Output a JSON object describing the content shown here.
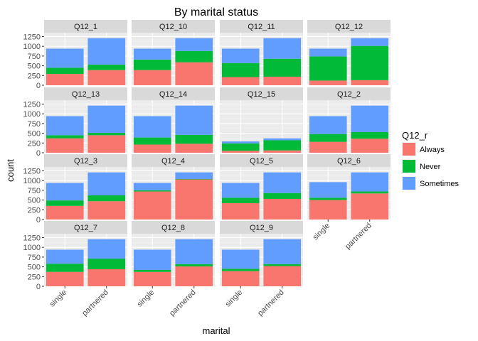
{
  "chart_data": {
    "type": "bar",
    "stacked": true,
    "title": "By marital status",
    "xlabel": "marital",
    "ylabel": "count",
    "ylim": [
      0,
      1350
    ],
    "y_ticks": [
      0,
      250,
      500,
      750,
      1000,
      1250
    ],
    "categories": [
      "single",
      "partnered"
    ],
    "legend": {
      "title": "Q12_r",
      "position": "right",
      "entries": [
        {
          "name": "Always",
          "color": "#F8766D"
        },
        {
          "name": "Never",
          "color": "#00BA38"
        },
        {
          "name": "Sometimes",
          "color": "#619CFF"
        }
      ]
    },
    "panels": [
      {
        "label": "Q12_1",
        "single": {
          "Always": 290,
          "Never": 160,
          "Sometimes": 490
        },
        "partnered": {
          "Always": 390,
          "Never": 140,
          "Sometimes": 680
        }
      },
      {
        "label": "Q12_10",
        "single": {
          "Always": 390,
          "Never": 270,
          "Sometimes": 280
        },
        "partnered": {
          "Always": 590,
          "Never": 290,
          "Sometimes": 330
        }
      },
      {
        "label": "Q12_11",
        "single": {
          "Always": 210,
          "Never": 360,
          "Sometimes": 370
        },
        "partnered": {
          "Always": 220,
          "Never": 460,
          "Sometimes": 530
        }
      },
      {
        "label": "Q12_12",
        "single": {
          "Always": 120,
          "Never": 620,
          "Sometimes": 200
        },
        "partnered": {
          "Always": 130,
          "Never": 880,
          "Sometimes": 200
        }
      },
      {
        "label": "Q12_13",
        "single": {
          "Always": 370,
          "Never": 80,
          "Sometimes": 490
        },
        "partnered": {
          "Always": 450,
          "Never": 60,
          "Sometimes": 700
        }
      },
      {
        "label": "Q12_14",
        "single": {
          "Always": 210,
          "Never": 180,
          "Sometimes": 550
        },
        "partnered": {
          "Always": 230,
          "Never": 230,
          "Sometimes": 750
        }
      },
      {
        "label": "Q12_15",
        "single": {
          "Always": 50,
          "Never": 190,
          "Sometimes": 50
        },
        "partnered": {
          "Always": 60,
          "Never": 260,
          "Sometimes": 50
        }
      },
      {
        "label": "Q12_2",
        "single": {
          "Always": 280,
          "Never": 200,
          "Sometimes": 460
        },
        "partnered": {
          "Always": 360,
          "Never": 170,
          "Sometimes": 680
        }
      },
      {
        "label": "Q12_3",
        "single": {
          "Always": 350,
          "Never": 140,
          "Sometimes": 450
        },
        "partnered": {
          "Always": 470,
          "Never": 150,
          "Sometimes": 590
        }
      },
      {
        "label": "Q12_4",
        "single": {
          "Always": 720,
          "Never": 30,
          "Sometimes": 190
        },
        "partnered": {
          "Always": 1030,
          "Never": 10,
          "Sometimes": 170
        }
      },
      {
        "label": "Q12_5",
        "single": {
          "Always": 420,
          "Never": 140,
          "Sometimes": 380
        },
        "partnered": {
          "Always": 530,
          "Never": 150,
          "Sometimes": 530
        }
      },
      {
        "label": "Q12_6",
        "single": {
          "Always": 500,
          "Never": 60,
          "Sometimes": 400
        },
        "partnered": {
          "Always": 670,
          "Never": 50,
          "Sometimes": 490
        }
      },
      {
        "label": "Q12_7",
        "single": {
          "Always": 370,
          "Never": 210,
          "Sometimes": 360
        },
        "partnered": {
          "Always": 440,
          "Never": 270,
          "Sometimes": 500
        }
      },
      {
        "label": "Q12_8",
        "single": {
          "Always": 370,
          "Never": 50,
          "Sometimes": 520
        },
        "partnered": {
          "Always": 510,
          "Never": 60,
          "Sometimes": 640
        }
      },
      {
        "label": "Q12_9",
        "single": {
          "Always": 390,
          "Never": 60,
          "Sometimes": 490
        },
        "partnered": {
          "Always": 520,
          "Never": 50,
          "Sometimes": 640
        }
      }
    ]
  }
}
